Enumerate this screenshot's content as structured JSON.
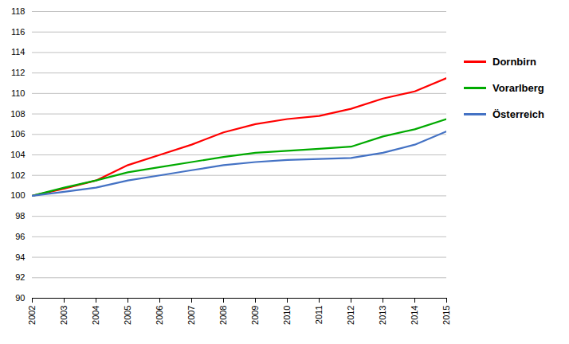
{
  "chart_data": {
    "type": "line",
    "x": [
      2002,
      2003,
      2004,
      2005,
      2006,
      2007,
      2008,
      2009,
      2010,
      2011,
      2012,
      2013,
      2014,
      2015
    ],
    "xlim": [
      2002,
      2015
    ],
    "xticks": [
      2002,
      2003,
      2004,
      2005,
      2006,
      2007,
      2008,
      2009,
      2010,
      2011,
      2012,
      2013,
      2014,
      2015
    ],
    "ylim": [
      90,
      118
    ],
    "yticks": [
      90,
      92,
      94,
      96,
      98,
      100,
      102,
      104,
      106,
      108,
      110,
      112,
      114,
      116,
      118
    ],
    "grid": true,
    "legend": "right",
    "series": [
      {
        "name": "Dornbirn",
        "color": "#ff0000",
        "values": [
          100.0,
          100.7,
          101.5,
          103.0,
          104.0,
          105.0,
          106.2,
          107.0,
          107.5,
          107.8,
          108.5,
          109.5,
          110.2,
          111.5
        ]
      },
      {
        "name": "Vorarlberg",
        "color": "#00aa00",
        "values": [
          100.0,
          100.8,
          101.5,
          102.3,
          102.8,
          103.3,
          103.8,
          104.2,
          104.4,
          104.6,
          104.8,
          105.8,
          106.5,
          107.5
        ]
      },
      {
        "name": "Österreich",
        "color": "#4472c4",
        "values": [
          100.0,
          100.4,
          100.8,
          101.5,
          102.0,
          102.5,
          103.0,
          103.3,
          103.5,
          103.6,
          103.7,
          104.2,
          105.0,
          106.3
        ]
      }
    ]
  }
}
